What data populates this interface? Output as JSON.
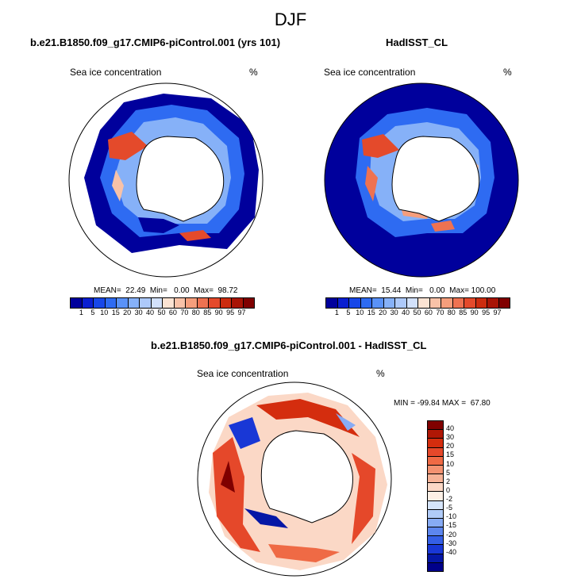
{
  "season": "DJF",
  "panel_model": {
    "title": "b.e21.B1850.f09_g17.CMIP6-piControl.001 (yrs 101)",
    "subtitle": "Sea ice concentration",
    "units": "%",
    "stats": "MEAN=  22.49  Min=   0.00  Max=  98.72"
  },
  "panel_obs": {
    "title": "HadISST_CL",
    "subtitle": "Sea ice concentration",
    "units": "%",
    "stats": "MEAN=  15.44  Min=   0.00  Max= 100.00"
  },
  "panel_diff": {
    "title": "b.e21.B1850.f09_g17.CMIP6-piControl.001 - HadISST_CL",
    "subtitle": "Sea ice concentration",
    "units": "%",
    "stats": "MIN = -99.84 MAX =  67.80"
  },
  "colorbar_conc": {
    "labels": [
      "1",
      "5",
      "10",
      "15",
      "20",
      "30",
      "40",
      "50",
      "60",
      "70",
      "80",
      "85",
      "90",
      "95",
      "97"
    ],
    "colors": [
      "#00009c",
      "#0a1fd1",
      "#1747e8",
      "#2e6bf2",
      "#5a92f7",
      "#86b1f8",
      "#adc9fa",
      "#d2e1fb",
      "#fbe3d3",
      "#f8c2a8",
      "#f59e7c",
      "#ee7251",
      "#e44a2b",
      "#cc2c0f",
      "#a81405",
      "#800000"
    ]
  },
  "colorbar_diff": {
    "labels": [
      "40",
      "30",
      "20",
      "15",
      "10",
      "5",
      "2",
      "0",
      "-2",
      "-5",
      "-10",
      "-15",
      "-20",
      "-30",
      "-40"
    ],
    "colors": [
      "#800000",
      "#b01705",
      "#d42d0e",
      "#e5482a",
      "#ef6a45",
      "#f49271",
      "#f7b397",
      "#fbd8c6",
      "#fdf0e6",
      "#d6e5fb",
      "#b0cbf8",
      "#87abf4",
      "#5d86ee",
      "#355fe6",
      "#1937d6",
      "#0517a6",
      "#00008a"
    ]
  },
  "colors": {
    "land": "#ffffff",
    "coast": "#000000"
  }
}
